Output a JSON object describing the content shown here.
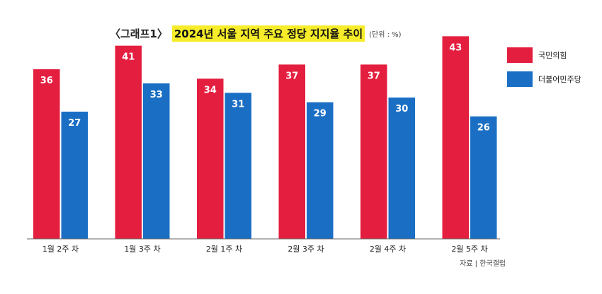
{
  "title": {
    "prefix": "〈그래프1〉",
    "main": "2024년 서울 지역 주요 정당 지지율 추이",
    "unit": "(단위 : %)"
  },
  "colors": {
    "red": "#e41e3f",
    "blue": "#1a6fc4",
    "axis": "#666666"
  },
  "source": "자료 | 한국갤럽",
  "chart_data": {
    "type": "bar",
    "categories": [
      "1월 2주 차",
      "1월 3주 차",
      "2월 1주 차",
      "2월 3주 차",
      "2월 4주 차",
      "2월 5주 차"
    ],
    "series": [
      {
        "name": "국민의힘",
        "values": [
          36,
          41,
          34,
          37,
          37,
          43
        ],
        "color": "#e41e3f"
      },
      {
        "name": "더불어민주당",
        "values": [
          27,
          33,
          31,
          29,
          30,
          26
        ],
        "color": "#1a6fc4"
      }
    ],
    "ylim": [
      0,
      45
    ],
    "grid": false,
    "legend_position": "top-right",
    "data_labels": true
  }
}
